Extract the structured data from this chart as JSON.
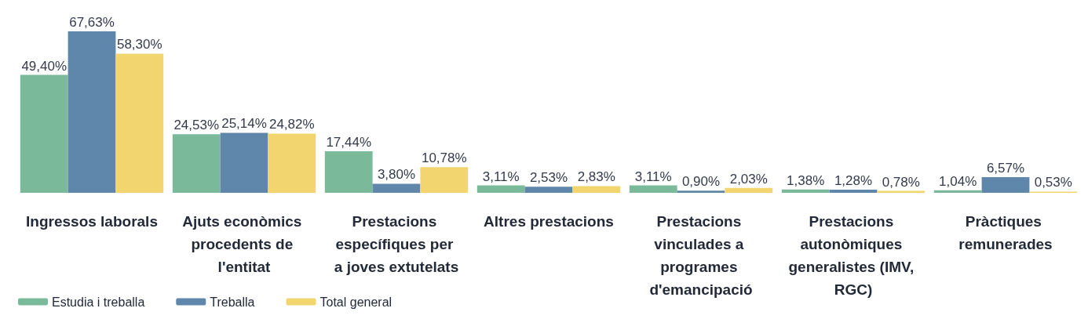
{
  "chart_data": {
    "type": "bar",
    "categories": [
      "Ingressos laborals",
      "Ajuts econòmics procedents de l'entitat",
      "Prestacions específiques per a joves extutelats",
      "Altres prestacions",
      "Prestacions vinculades a programes d'emancipació",
      "Prestacions autonòmiques generalistes (IMV, RGC)",
      "Pràctiques remunerades"
    ],
    "series": [
      {
        "name": "Estudia i treballa",
        "color": "#7ab99a",
        "values": [
          49.4,
          24.53,
          17.44,
          3.11,
          3.11,
          1.38,
          1.04
        ],
        "value_labels": [
          "49,40%",
          "24,53%",
          "17,44%",
          "3,11%",
          "3,11%",
          "1,38%",
          "1,04%"
        ]
      },
      {
        "name": "Treballa",
        "color": "#5f87ab",
        "values": [
          67.63,
          25.14,
          3.8,
          2.53,
          0.9,
          1.28,
          6.57
        ],
        "value_labels": [
          "67,63%",
          "25,14%",
          "3,80%",
          "2,53%",
          "0,90%",
          "1,28%",
          "6,57%"
        ]
      },
      {
        "name": "Total general",
        "color": "#f2d56e",
        "values": [
          58.3,
          24.82,
          10.78,
          2.83,
          2.03,
          0.78,
          0.53
        ],
        "value_labels": [
          "58,30%",
          "24,82%",
          "10,78%",
          "2,83%",
          "2,03%",
          "0,78%",
          "0,53%"
        ]
      }
    ],
    "legend": "bottom left"
  }
}
